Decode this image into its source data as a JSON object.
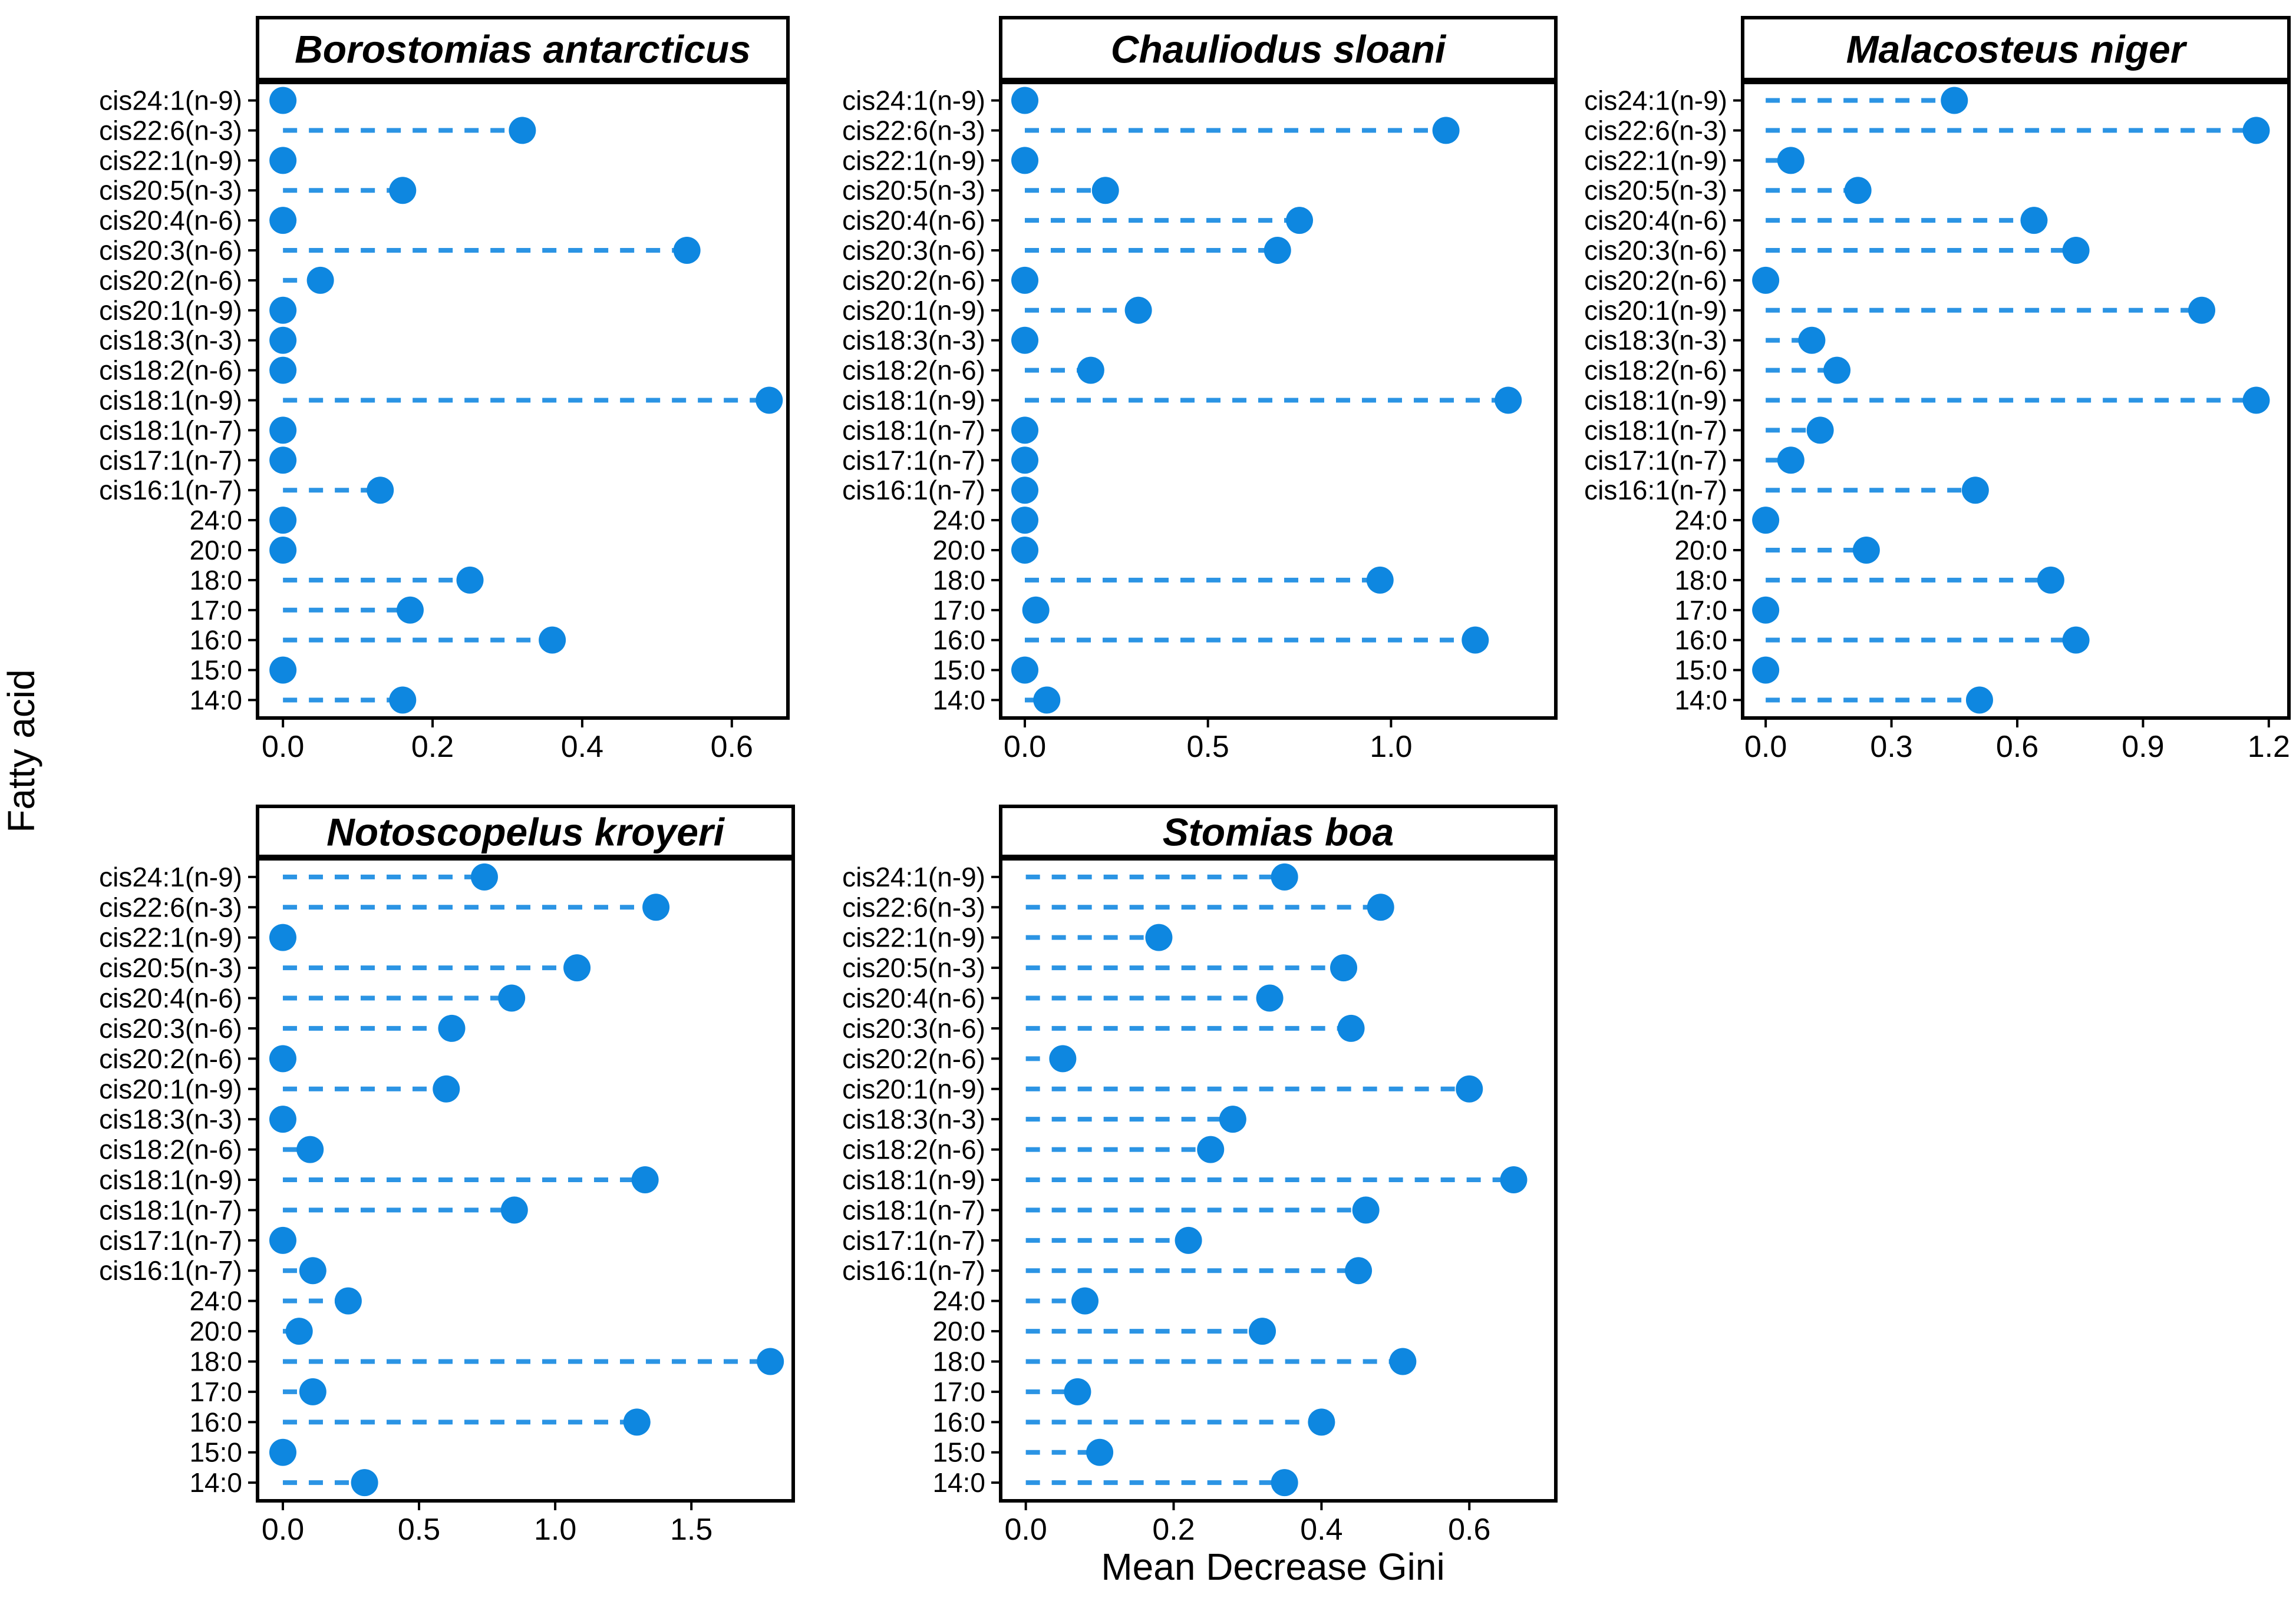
{
  "chart_data": {
    "type": "scatter",
    "subtype": "lollipop-facets",
    "xlabel": "Mean Decrease Gini",
    "ylabel": "Fatty acid",
    "grid": "off",
    "legend": "none",
    "colors": {
      "point": "#0e87e0",
      "stem": "#2b94e4",
      "panel_border": "#000000",
      "strip_background": "#ffffff",
      "strip_border": "#000000",
      "background": "#ffffff"
    },
    "categories": [
      "cis24:1(n-9)",
      "cis22:6(n-3)",
      "cis22:1(n-9)",
      "cis20:5(n-3)",
      "cis20:4(n-6)",
      "cis20:3(n-6)",
      "cis20:2(n-6)",
      "cis20:1(n-9)",
      "cis18:3(n-3)",
      "cis18:2(n-6)",
      "cis18:1(n-9)",
      "cis18:1(n-7)",
      "cis17:1(n-7)",
      "cis16:1(n-7)",
      "24:0",
      "20:0",
      "18:0",
      "17:0",
      "16:0",
      "15:0",
      "14:0"
    ],
    "panels": [
      {
        "name": "Borostomias antarcticus",
        "xlim": [
          -0.034,
          0.675
        ],
        "ticks": [
          0.0,
          0.2,
          0.4,
          0.6
        ],
        "tick_labels": [
          "0.0",
          "0.2",
          "0.4",
          "0.6"
        ],
        "values": [
          0.0,
          0.32,
          0.0,
          0.16,
          0.0,
          0.54,
          0.05,
          0.0,
          0.0,
          0.0,
          0.65,
          0.0,
          0.0,
          0.13,
          0.0,
          0.0,
          0.25,
          0.17,
          0.36,
          0.0,
          0.16
        ]
      },
      {
        "name": "Chauliodus sloani",
        "xlim": [
          -0.066,
          1.45
        ],
        "ticks": [
          0.0,
          0.5,
          1.0
        ],
        "tick_labels": [
          "0.0",
          "0.5",
          "1.0"
        ],
        "values": [
          0.0,
          1.15,
          0.0,
          0.22,
          0.75,
          0.69,
          0.0,
          0.31,
          0.0,
          0.18,
          1.32,
          0.0,
          0.0,
          0.0,
          0.0,
          0.0,
          0.97,
          0.03,
          1.23,
          0.0,
          0.06
        ]
      },
      {
        "name": "Malacosteus niger",
        "xlim": [
          -0.055,
          1.248
        ],
        "ticks": [
          0.0,
          0.3,
          0.6,
          0.9,
          1.2
        ],
        "tick_labels": [
          "0.0",
          "0.3",
          "0.6",
          "0.9",
          "1.2"
        ],
        "values": [
          0.45,
          1.17,
          0.06,
          0.22,
          0.64,
          0.74,
          0.0,
          1.04,
          0.11,
          0.17,
          1.17,
          0.13,
          0.06,
          0.5,
          0.0,
          0.24,
          0.68,
          0.0,
          0.74,
          0.0,
          0.51
        ]
      },
      {
        "name": "Notoscopelus kroyeri",
        "xlim": [
          -0.093,
          1.874
        ],
        "ticks": [
          0.0,
          0.5,
          1.0,
          1.5
        ],
        "tick_labels": [
          "0.0",
          "0.5",
          "1.0",
          "1.5"
        ],
        "values": [
          0.74,
          1.37,
          0.0,
          1.08,
          0.84,
          0.62,
          0.0,
          0.6,
          0.0,
          0.1,
          1.33,
          0.85,
          0.0,
          0.11,
          0.24,
          0.06,
          1.79,
          0.11,
          1.3,
          0.0,
          0.3
        ]
      },
      {
        "name": "Stomias boa",
        "xlim": [
          -0.034,
          0.717
        ],
        "ticks": [
          0.0,
          0.2,
          0.4,
          0.6
        ],
        "tick_labels": [
          "0.0",
          "0.2",
          "0.4",
          "0.6"
        ],
        "values": [
          0.35,
          0.48,
          0.18,
          0.43,
          0.33,
          0.44,
          0.05,
          0.6,
          0.28,
          0.25,
          0.66,
          0.46,
          0.22,
          0.45,
          0.08,
          0.32,
          0.51,
          0.07,
          0.4,
          0.1,
          0.35
        ]
      }
    ]
  }
}
